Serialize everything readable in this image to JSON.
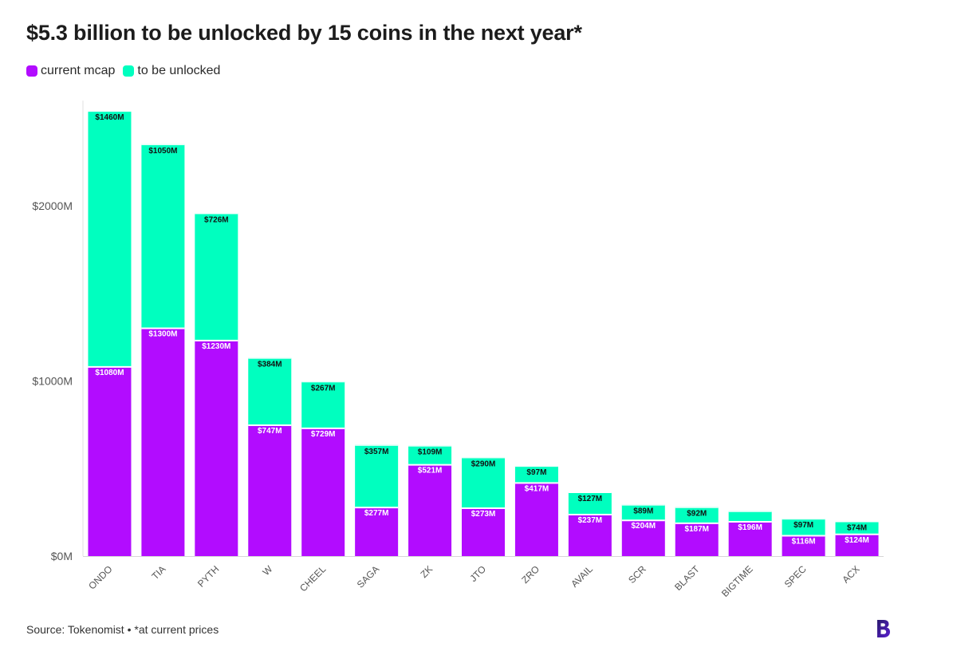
{
  "title": "$5.3 billion to be unlocked by 15 coins in the next year*",
  "legend": [
    {
      "label": "current mcap",
      "color": "#b20cff"
    },
    {
      "label": "to be unlocked",
      "color": "#00ffbf"
    }
  ],
  "source": "Source: Tokenomist • *at current prices",
  "logo_icon": "b-logo-icon",
  "chart_data": {
    "type": "bar",
    "stacked": true,
    "categories": [
      "ONDO",
      "TIA",
      "PYTH",
      "W",
      "CHEEL",
      "SAGA",
      "ZK",
      "JTO",
      "ZRO",
      "AVAIL",
      "SCR",
      "BLAST",
      "BIGTIME",
      "SPEC",
      "ACX"
    ],
    "series": [
      {
        "name": "current mcap",
        "color": "#b20cff",
        "values": [
          1080,
          1300,
          1230,
          747,
          729,
          277,
          521,
          273,
          417,
          237,
          204,
          187,
          196,
          116,
          124
        ],
        "labels": [
          "$1080M",
          "$1300M",
          "$1230M",
          "$747M",
          "$729M",
          "$277M",
          "$521M",
          "$273M",
          "$417M",
          "$237M",
          "$204M",
          "$187M",
          "$196M",
          "$116M",
          "$124M"
        ]
      },
      {
        "name": "to be unlocked",
        "color": "#00ffbf",
        "values": [
          1460,
          1050,
          726,
          384,
          267,
          357,
          109,
          290,
          97,
          127,
          89,
          92,
          60,
          97,
          74
        ],
        "labels": [
          "$1460M",
          "$1050M",
          "$726M",
          "$384M",
          "$267M",
          "$357M",
          "$109M",
          "$290M",
          "$97M",
          "$127M",
          "$89M",
          "$92M",
          "",
          "$97M",
          "$74M"
        ]
      }
    ],
    "yticks": [
      {
        "value": 0,
        "label": "$0M"
      },
      {
        "value": 1000,
        "label": "$1000M"
      },
      {
        "value": 2000,
        "label": "$2000M"
      }
    ],
    "ylim": [
      0,
      2600
    ],
    "xlabel": "",
    "ylabel": "",
    "grid": false
  }
}
